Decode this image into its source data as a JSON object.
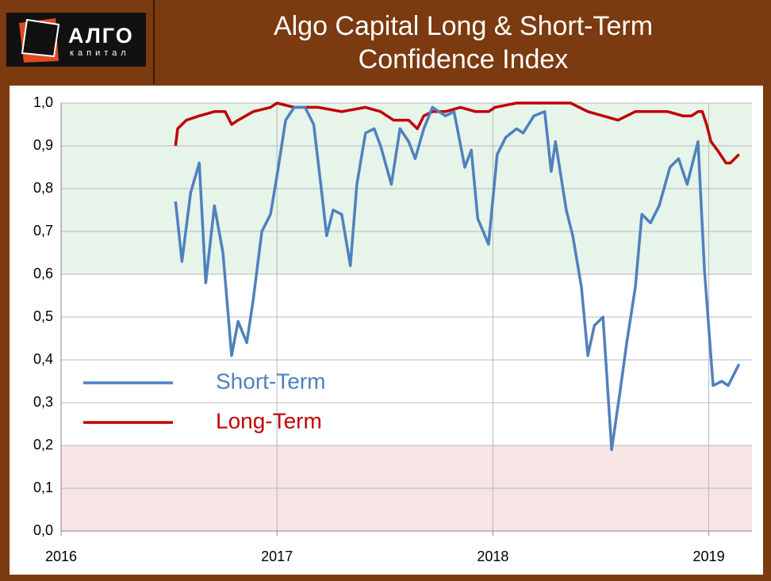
{
  "logo": {
    "name": "АЛГО",
    "tagline": "капитал"
  },
  "chart_data": {
    "type": "line",
    "title": "Algo Capital Long & Short-Term Confidence Index",
    "xlim": [
      2016,
      2019.2
    ],
    "xticks": [
      2016,
      2017,
      2018,
      2019
    ],
    "ylim": [
      0,
      1
    ],
    "yticks": [
      {
        "value": 0,
        "label": "0,0"
      },
      {
        "value": 0.1,
        "label": "0,1"
      },
      {
        "value": 0.2,
        "label": "0,2"
      },
      {
        "value": 0.3,
        "label": "0,3"
      },
      {
        "value": 0.4,
        "label": "0,4"
      },
      {
        "value": 0.5,
        "label": "0,5"
      },
      {
        "value": 0.6,
        "label": "0,6"
      },
      {
        "value": 0.7,
        "label": "0,7"
      },
      {
        "value": 0.8,
        "label": "0,8"
      },
      {
        "value": 0.9,
        "label": "0,9"
      },
      {
        "value": 1,
        "label": "1,0"
      }
    ],
    "grid": true,
    "legend": "lower left",
    "bands": [
      {
        "from": 0.6,
        "to": 1,
        "color": "#e6f4ea"
      },
      {
        "from": 0,
        "to": 0.2,
        "color": "#f7e4e4"
      }
    ],
    "series": [
      {
        "name": "Short-Term",
        "color": "#4f81bd",
        "x": [
          2016.53,
          2016.56,
          2016.6,
          2016.64,
          2016.67,
          2016.71,
          2016.75,
          2016.79,
          2016.82,
          2016.86,
          2016.89,
          2016.93,
          2016.97,
          2017.0,
          2017.04,
          2017.08,
          2017.13,
          2017.17,
          2017.21,
          2017.23,
          2017.26,
          2017.3,
          2017.34,
          2017.37,
          2017.41,
          2017.45,
          2017.48,
          2017.53,
          2017.57,
          2017.61,
          2017.64,
          2017.68,
          2017.72,
          2017.78,
          2017.82,
          2017.87,
          2017.9,
          2017.93,
          2017.98,
          2018.02,
          2018.06,
          2018.11,
          2018.14,
          2018.19,
          2018.24,
          2018.27,
          2018.29,
          2018.34,
          2018.37,
          2018.41,
          2018.44,
          2018.47,
          2018.51,
          2018.55,
          2018.59,
          2018.62,
          2018.66,
          2018.69,
          2018.73,
          2018.77,
          2018.82,
          2018.86,
          2018.9,
          2018.95,
          2018.98,
          2019.02,
          2019.06,
          2019.09,
          2019.14
        ],
        "values": [
          0.77,
          0.63,
          0.79,
          0.86,
          0.58,
          0.76,
          0.65,
          0.41,
          0.49,
          0.44,
          0.54,
          0.7,
          0.74,
          0.83,
          0.96,
          0.99,
          0.99,
          0.95,
          0.78,
          0.69,
          0.75,
          0.74,
          0.62,
          0.81,
          0.93,
          0.94,
          0.9,
          0.81,
          0.94,
          0.91,
          0.87,
          0.94,
          0.99,
          0.97,
          0.98,
          0.85,
          0.89,
          0.73,
          0.67,
          0.88,
          0.92,
          0.94,
          0.93,
          0.97,
          0.98,
          0.84,
          0.91,
          0.75,
          0.69,
          0.57,
          0.41,
          0.48,
          0.5,
          0.19,
          0.33,
          0.44,
          0.57,
          0.74,
          0.72,
          0.76,
          0.85,
          0.87,
          0.81,
          0.91,
          0.61,
          0.34,
          0.35,
          0.34,
          0.39
        ]
      },
      {
        "name": "Long-Term",
        "color": "#c00000",
        "x": [
          2016.53,
          2016.54,
          2016.58,
          2016.64,
          2016.71,
          2016.76,
          2016.79,
          2016.82,
          2016.89,
          2016.97,
          2017.0,
          2017.08,
          2017.19,
          2017.3,
          2017.41,
          2017.48,
          2017.54,
          2017.57,
          2017.61,
          2017.65,
          2017.68,
          2017.72,
          2017.78,
          2017.85,
          2017.92,
          2017.98,
          2018.01,
          2018.11,
          2018.22,
          2018.29,
          2018.36,
          2018.44,
          2018.51,
          2018.58,
          2018.66,
          2018.73,
          2018.81,
          2018.88,
          2018.92,
          2018.95,
          2018.97,
          2018.99,
          2019.01,
          2019.04,
          2019.08,
          2019.1,
          2019.14
        ],
        "values": [
          0.9,
          0.94,
          0.96,
          0.97,
          0.98,
          0.98,
          0.95,
          0.96,
          0.98,
          0.99,
          1.0,
          0.99,
          0.99,
          0.98,
          0.99,
          0.98,
          0.96,
          0.96,
          0.96,
          0.94,
          0.97,
          0.98,
          0.98,
          0.99,
          0.98,
          0.98,
          0.99,
          1.0,
          1.0,
          1.0,
          1.0,
          0.98,
          0.97,
          0.96,
          0.98,
          0.98,
          0.98,
          0.97,
          0.97,
          0.98,
          0.98,
          0.95,
          0.91,
          0.89,
          0.86,
          0.86,
          0.88
        ]
      }
    ]
  }
}
